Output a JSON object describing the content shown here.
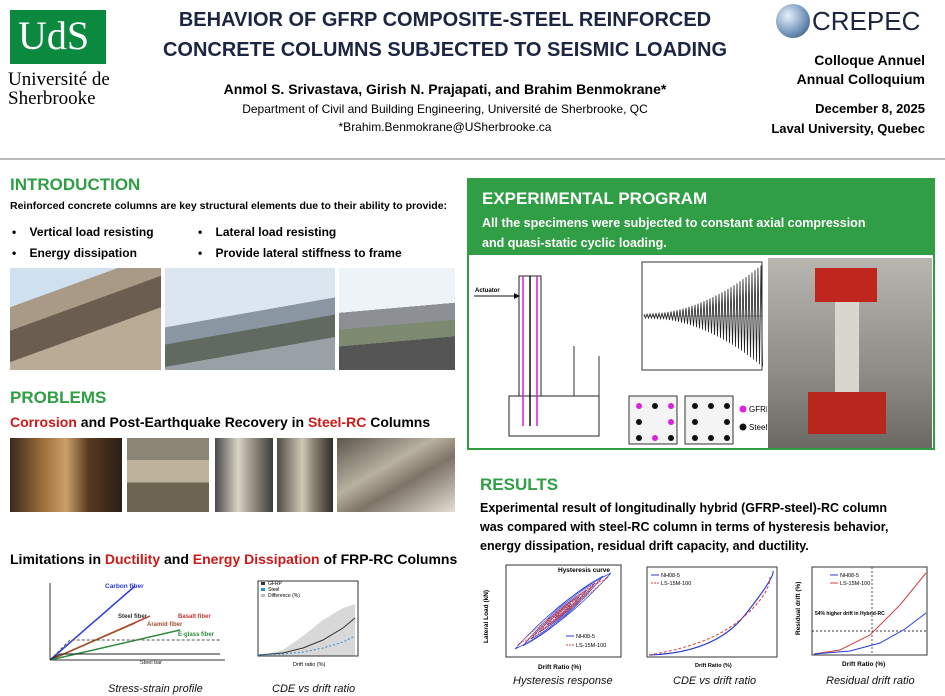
{
  "header": {
    "logo_left": {
      "mark": "UdS",
      "name_lines": [
        "Université de",
        "Sherbrooke"
      ]
    },
    "title_lines": [
      "BEHAVIOR OF GFRP COMPOSITE-STEEL REINFORCED",
      "CONCRETE COLUMNS SUBJECTED TO SEISMIC LOADING"
    ],
    "authors": "Anmol S. Srivastava, Girish N. Prajapati, and Brahim Benmokrane*",
    "department": "Department of Civil and Building Engineering, Université de Sherbrooke, QC",
    "email": "*Brahim.Benmokrane@USherbrooke.ca",
    "logo_right": "CREPEC",
    "event_lines": [
      "Colloque Annuel",
      "Annual Colloquium"
    ],
    "date": "December 8, 2025",
    "location": "Laval University, Quebec"
  },
  "introduction": {
    "heading": "INTRODUCTION",
    "text": "Reinforced concrete columns are key structural elements due to their ability to provide:",
    "bullets": [
      "Vertical load resisting",
      "Energy dissipation",
      "Lateral load resisting",
      "Provide lateral stiffness to frame"
    ]
  },
  "problems": {
    "heading": "PROBLEMS",
    "subheading": [
      {
        "text": "Corrosion",
        "highlight": true
      },
      {
        "text": " and Post-Earthquake Recovery in ",
        "highlight": false
      },
      {
        "text": "Steel-RC",
        "highlight": true
      },
      {
        "text": " Columns",
        "highlight": false
      }
    ],
    "limitations": [
      {
        "text": "Limitations in ",
        "highlight": false
      },
      {
        "text": "Ductility",
        "highlight": true
      },
      {
        "text": " and ",
        "highlight": false
      },
      {
        "text": "Energy Dissipation",
        "highlight": true
      },
      {
        "text": " of FRP-RC Columns",
        "highlight": false
      }
    ],
    "figures": [
      {
        "caption": "Stress-strain profile",
        "labels": [
          "Carbon fiber",
          "Steel fiber",
          "Aramid fiber",
          "Basalt fiber",
          "E-glass fiber",
          "Steel bar"
        ]
      },
      {
        "caption": "CDE vs drift ratio",
        "labels": [
          "GFRP",
          "Steel",
          "Difference (%)",
          "Drift ratio (%)"
        ]
      }
    ]
  },
  "experimental_program": {
    "heading": "EXPERIMENTAL PROGRAM",
    "text_lines": [
      "All the specimens were subjected to constant axial compression",
      "and quasi-static cyclic loading."
    ],
    "labels": [
      "Actuator",
      "GFRP",
      "Steel"
    ]
  },
  "results": {
    "heading": "RESULTS",
    "text_lines": [
      "Experimental result of longitudinally hybrid (GFRP-steel)-RC column",
      "was compared with steel-RC column in terms of hysteresis behavior,",
      "energy dissipation, residual drift capacity, and ductility."
    ],
    "figures": [
      {
        "caption": "Hysteresis response",
        "labels": [
          "Hysteresis curve",
          "Lateral Load (kN)",
          "Drift Ratio (%)",
          "NH08-5",
          "LS-15M-100"
        ]
      },
      {
        "caption": "CDE vs drift ratio",
        "labels": [
          "Drift Ratio (%)",
          "NH08-5",
          "LS-15M-100"
        ]
      },
      {
        "caption": "Residual drift ratio",
        "labels": [
          "Residual drift (%)",
          "Drift Ratio (%)",
          "NH08-5",
          "LS-15M-100",
          "54% higher drift in Hybrid-RC"
        ]
      }
    ]
  }
}
